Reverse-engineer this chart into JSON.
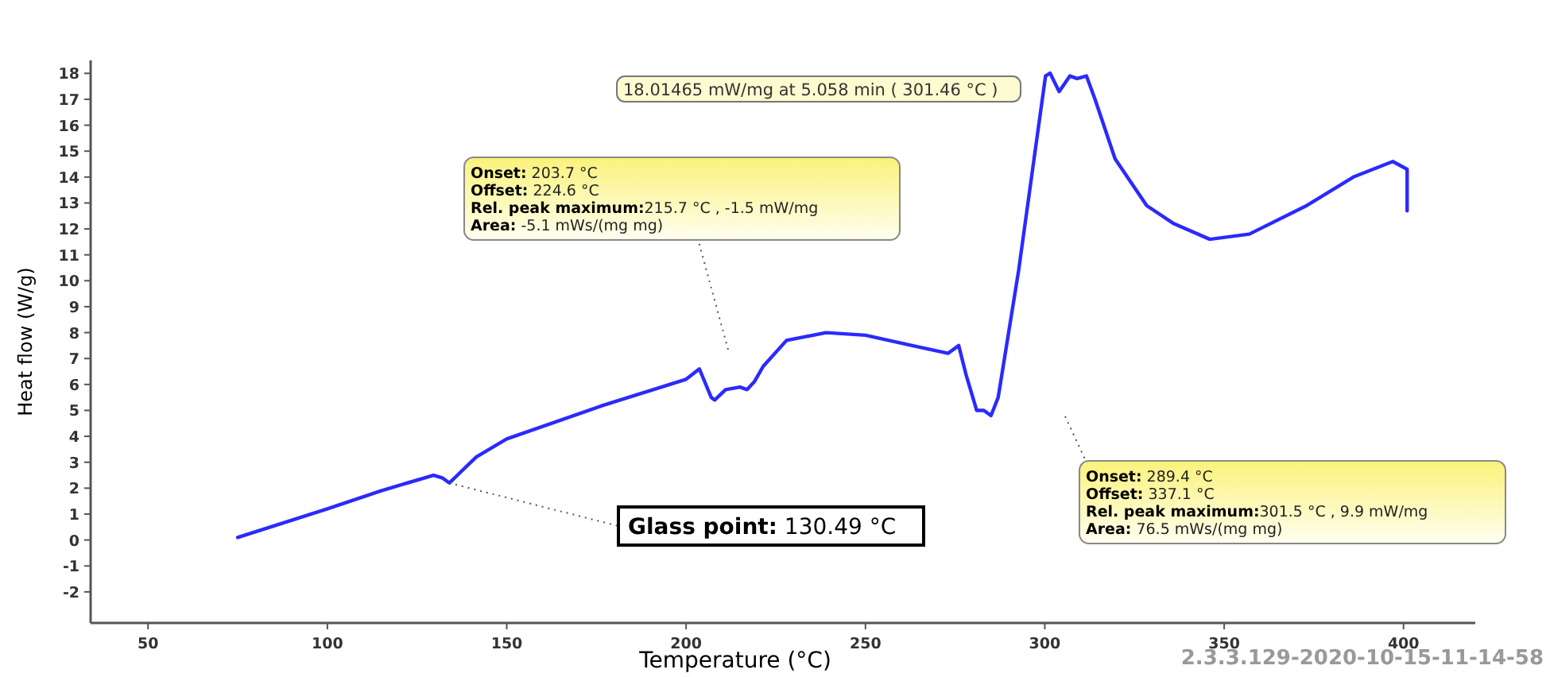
{
  "chart_data": {
    "type": "line",
    "xlabel": "Temperature (°C)",
    "ylabel": "Heat flow (W/g)",
    "xlim": [
      34,
      420
    ],
    "ylim": [
      -3.2,
      18.5
    ],
    "xticks": [
      50,
      100,
      150,
      200,
      250,
      300,
      350,
      400
    ],
    "yticks": [
      -2,
      -1,
      0,
      1,
      2,
      3,
      4,
      5,
      6,
      7,
      8,
      9,
      10,
      11,
      12,
      13,
      14,
      15,
      16,
      17,
      18
    ],
    "grid": false,
    "marker": "none",
    "line_style": "solid",
    "series": [
      {
        "color": "#2a2aff",
        "x": [
          75,
          100,
          115,
          129.6,
          132,
          134,
          137,
          141.5,
          150,
          177,
          200,
          203.7,
          207,
          208,
          211,
          215,
          217,
          219,
          221.5,
          228,
          239,
          250,
          263,
          273,
          276,
          278,
          281,
          283,
          285,
          287,
          292.7,
          297,
          300.2,
          301.46,
          304,
          307,
          309,
          311.6,
          314,
          319.6,
          328.4,
          336,
          346,
          357,
          373,
          386,
          397,
          401,
          401
        ],
        "values": [
          0.1,
          1.2,
          1.9,
          2.5,
          2.4,
          2.2,
          2.6,
          3.2,
          3.9,
          5.2,
          6.2,
          6.6,
          5.5,
          5.4,
          5.8,
          5.9,
          5.8,
          6.1,
          6.7,
          7.7,
          8.0,
          7.9,
          7.5,
          7.2,
          7.5,
          6.4,
          5.0,
          5.0,
          4.8,
          5.5,
          10.4,
          14.7,
          17.9,
          18.01,
          17.3,
          17.9,
          17.8,
          17.9,
          17.0,
          14.7,
          12.9,
          12.2,
          11.6,
          11.8,
          12.9,
          14.0,
          14.6,
          14.3,
          12.7
        ]
      }
    ],
    "annotations": [
      "18.01465 mW/mg at 5.058 min ( 301.46 °C )",
      "Onset: 203.7 °C\nOffset: 224.6 °C\nRel. peak maximum:215.7 °C ,  -1.5 mW/mg\nArea: -5.1 mWs/(mg mg)",
      "Onset: 289.4 °C\nOffset: 337.1 °C\nRel. peak maximum:301.5 °C ,  9.9 mW/mg\nArea: 76.5 mWs/(mg mg)",
      {
        "text": "Glass point: 130.49 °C",
        "x": 134,
        "y": 2.2
      },
      "2.3.3.129-2020-10-15-11-14-58"
    ]
  }
}
